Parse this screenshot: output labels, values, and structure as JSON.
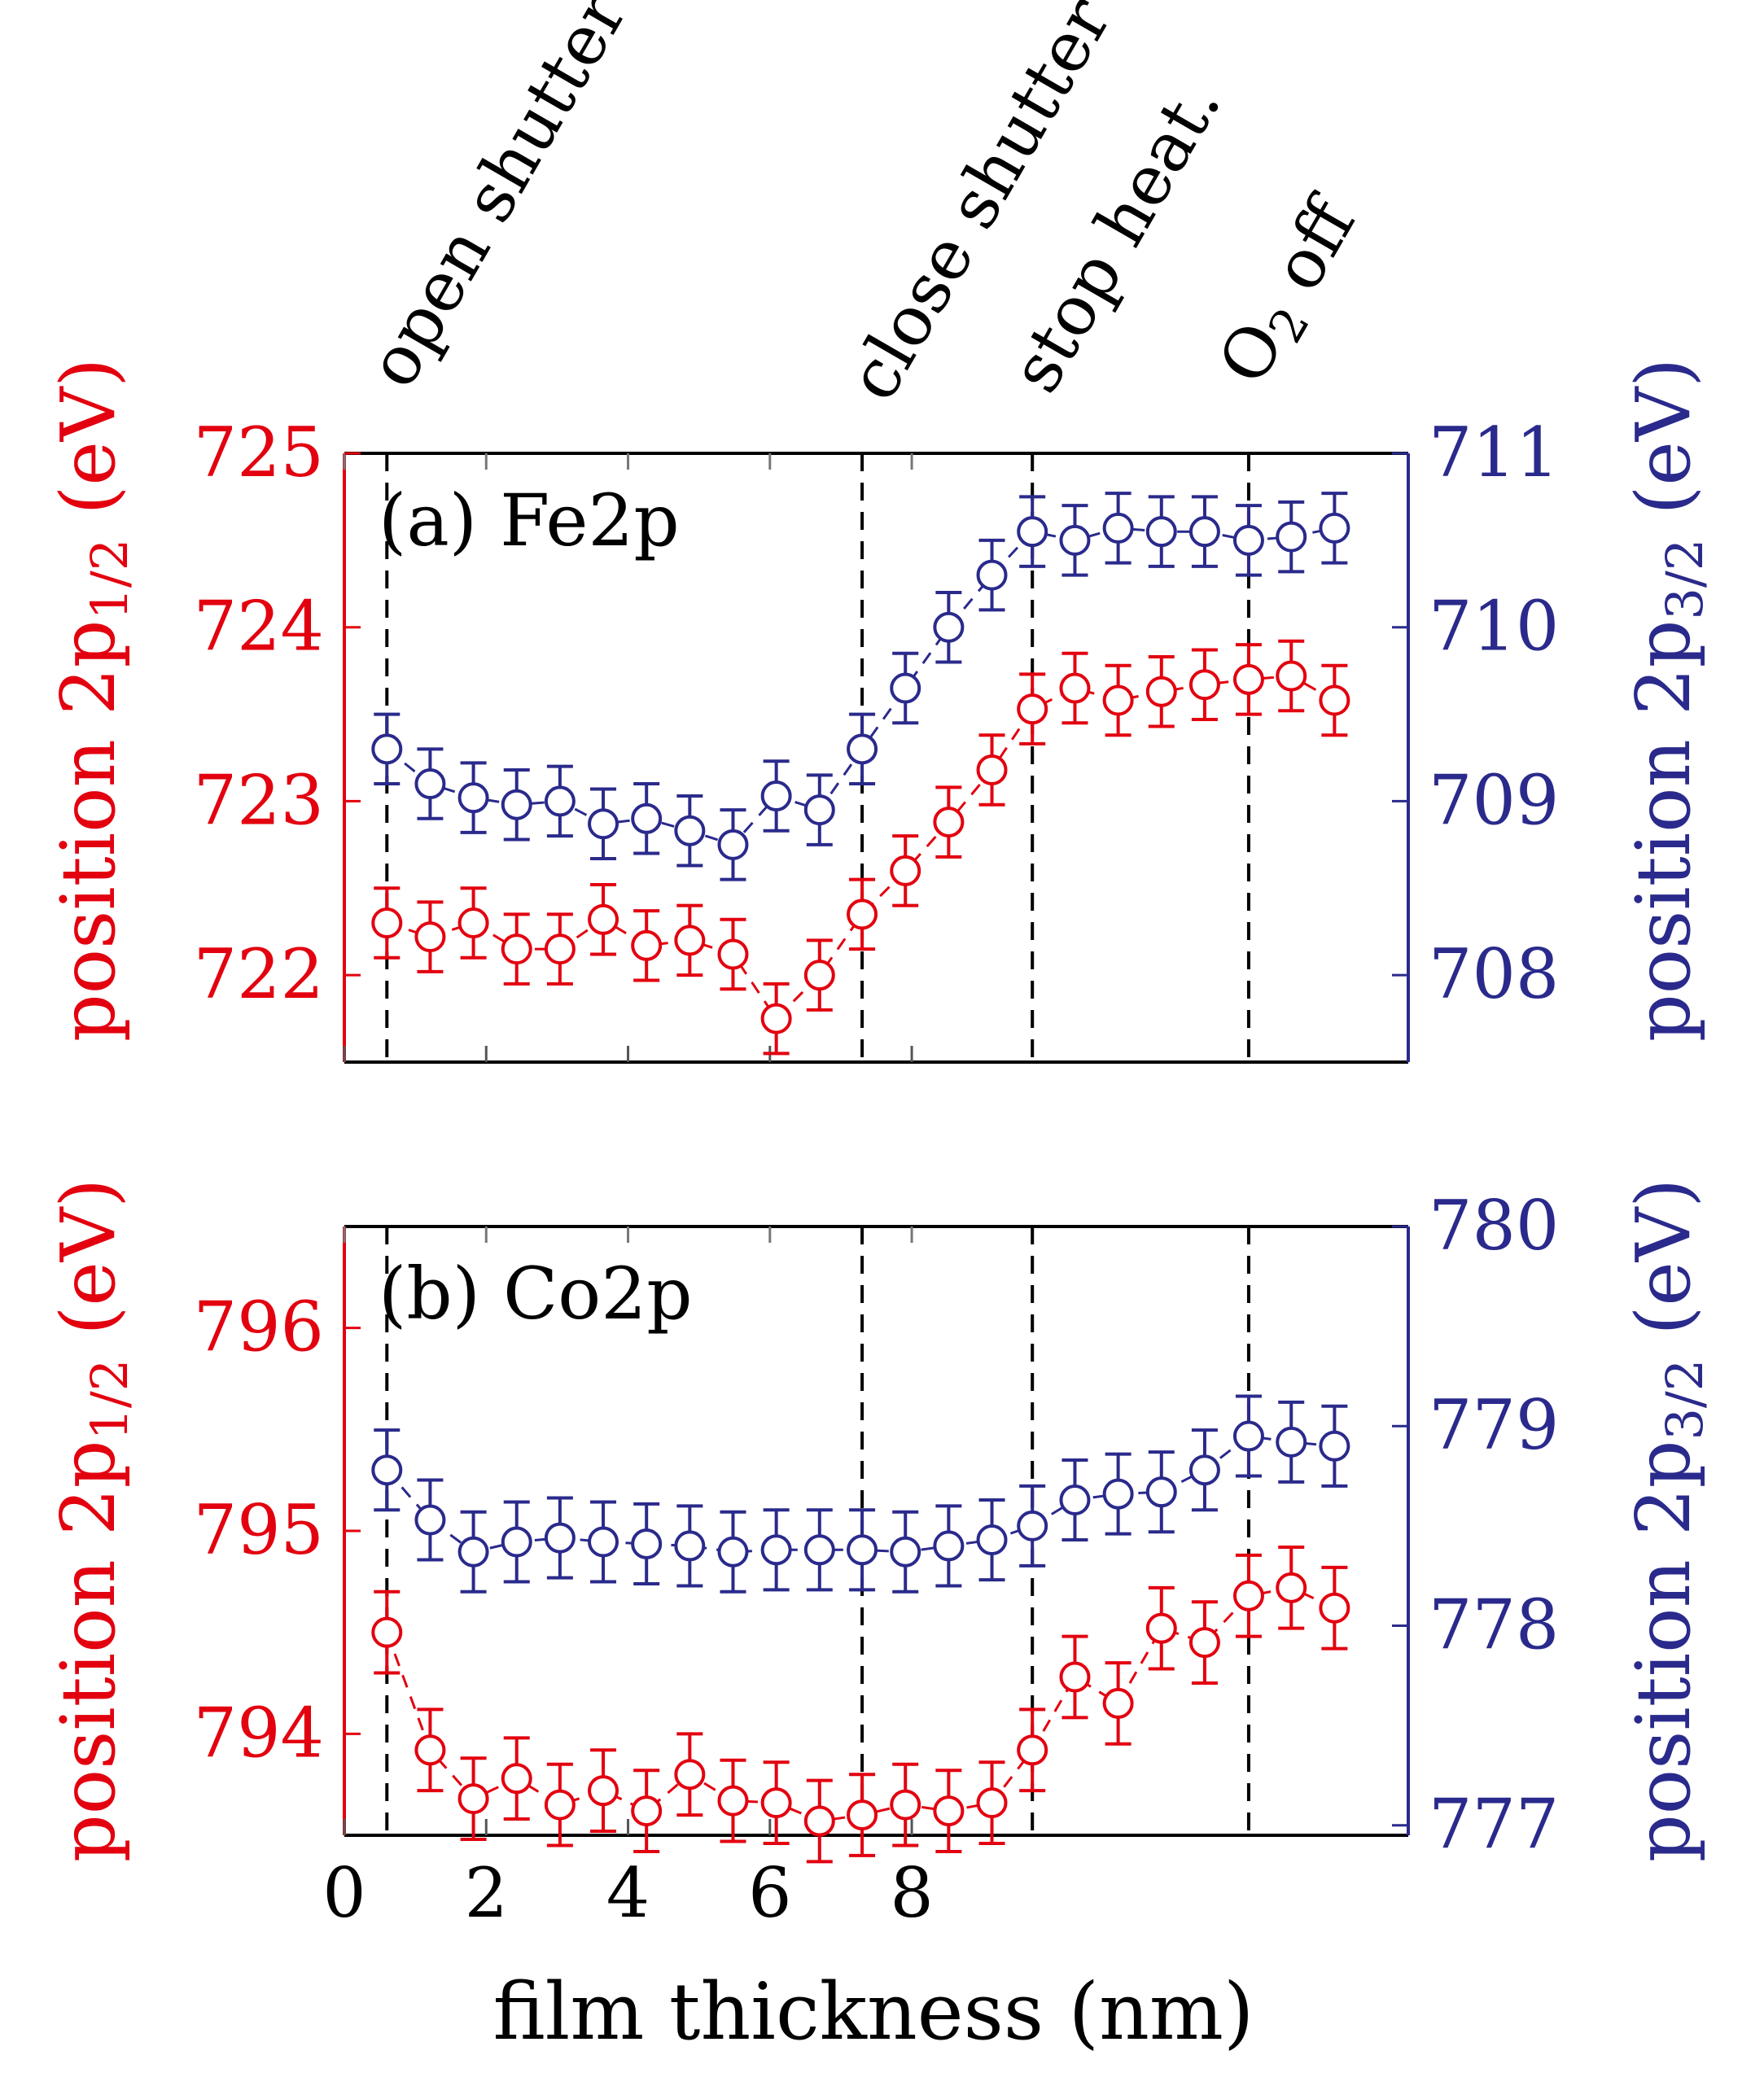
{
  "colors": {
    "red": "#e3000f",
    "blue": "#2a2a8c",
    "axis": "#000000"
  },
  "chart_data": [
    {
      "type": "scatter",
      "panel_label": "(a) Fe2p",
      "x_label": "film thickness (nm)",
      "x_ticks": [
        "0",
        "2",
        "4",
        "6",
        "8"
      ],
      "xlim": [
        0,
        15
      ],
      "vlines": [
        {
          "x": 0.6,
          "label": "open shutter"
        },
        {
          "x": 7.3,
          "label": "close shutter"
        },
        {
          "x": 9.7,
          "label": "stop heat."
        },
        {
          "x": 12.75,
          "label_main": "O",
          "label_sub": "2",
          "label_rest": " off"
        }
      ],
      "left_axis": {
        "label_main": "position 2p",
        "label_sub": "1/2",
        "label_unit": " (eV)",
        "ylim": [
          721.5,
          725.0
        ],
        "ticks": [
          "722",
          "723",
          "724",
          "725"
        ]
      },
      "right_axis": {
        "label_main": "position 2p",
        "label_sub": "3/2",
        "label_unit": " (eV)",
        "ylim": [
          707.5,
          711.0
        ],
        "ticks": [
          "708",
          "709",
          "710",
          "711"
        ]
      },
      "series": [
        {
          "axis": "left",
          "color": "red",
          "x": [
            0.6,
            1.21,
            1.82,
            2.43,
            3.04,
            3.65,
            4.26,
            4.87,
            5.48,
            6.09,
            6.7,
            7.3,
            7.91,
            8.52,
            9.13,
            9.7,
            10.3,
            10.91,
            11.52,
            12.13,
            12.75,
            13.35,
            13.96
          ],
          "y": [
            722.3,
            722.22,
            722.3,
            722.15,
            722.15,
            722.32,
            722.17,
            722.2,
            722.12,
            721.75,
            722.0,
            722.35,
            722.6,
            722.88,
            723.18,
            723.53,
            723.65,
            723.58,
            723.63,
            723.67,
            723.7,
            723.72,
            723.58
          ],
          "err": 0.2
        },
        {
          "axis": "right",
          "color": "blue",
          "x": [
            0.6,
            1.21,
            1.82,
            2.43,
            3.04,
            3.65,
            4.26,
            4.87,
            5.48,
            6.09,
            6.7,
            7.3,
            7.91,
            8.52,
            9.13,
            9.7,
            10.3,
            10.91,
            11.52,
            12.13,
            12.75,
            13.35,
            13.96
          ],
          "y": [
            709.3,
            709.1,
            709.02,
            708.98,
            709.0,
            708.87,
            708.9,
            708.83,
            708.75,
            709.03,
            708.95,
            709.3,
            709.65,
            710.0,
            710.3,
            710.55,
            710.5,
            710.57,
            710.55,
            710.55,
            710.5,
            710.52,
            710.57
          ],
          "err": 0.2
        }
      ]
    },
    {
      "type": "scatter",
      "panel_label": "(b) Co2p",
      "x_label": "film thickness (nm)",
      "x_ticks": [
        "0",
        "2",
        "4",
        "6",
        "8"
      ],
      "xlim": [
        0,
        15
      ],
      "vlines": [
        {
          "x": 0.6,
          "label": ""
        },
        {
          "x": 7.3,
          "label": ""
        },
        {
          "x": 9.7,
          "label": ""
        },
        {
          "x": 12.75,
          "label": ""
        }
      ],
      "left_axis": {
        "label_main": "position 2p",
        "label_sub": "1/2",
        "label_unit": " (eV)",
        "ylim": [
          793.5,
          796.5
        ],
        "ticks": [
          "794",
          "795",
          "796"
        ]
      },
      "right_axis": {
        "label_main": "position 2p",
        "label_sub": "3/2",
        "label_unit": " (eV)",
        "ylim": [
          776.95,
          780.0
        ],
        "ticks": [
          "777",
          "778",
          "779",
          "780"
        ]
      },
      "series": [
        {
          "axis": "left",
          "color": "red",
          "x": [
            0.6,
            1.21,
            1.82,
            2.43,
            3.04,
            3.65,
            4.26,
            4.87,
            5.48,
            6.09,
            6.7,
            7.3,
            7.91,
            8.52,
            9.13,
            9.7,
            10.3,
            10.91,
            11.52,
            12.13,
            12.75,
            13.35,
            13.96
          ],
          "y": [
            794.5,
            793.92,
            793.68,
            793.78,
            793.65,
            793.72,
            793.62,
            793.8,
            793.67,
            793.66,
            793.57,
            793.6,
            793.65,
            793.62,
            793.66,
            793.92,
            794.28,
            794.15,
            794.52,
            794.45,
            794.68,
            794.72,
            794.62
          ],
          "err": 0.2
        },
        {
          "axis": "right",
          "color": "blue",
          "x": [
            0.6,
            1.21,
            1.82,
            2.43,
            3.04,
            3.65,
            4.26,
            4.87,
            5.48,
            6.09,
            6.7,
            7.3,
            7.91,
            8.52,
            9.13,
            9.7,
            10.3,
            10.91,
            11.52,
            12.13,
            12.75,
            13.35,
            13.96
          ],
          "y": [
            778.78,
            778.53,
            778.37,
            778.42,
            778.44,
            778.42,
            778.41,
            778.4,
            778.37,
            778.38,
            778.38,
            778.38,
            778.37,
            778.4,
            778.43,
            778.5,
            778.63,
            778.66,
            778.67,
            778.78,
            778.95,
            778.92,
            778.9
          ],
          "err": 0.2
        }
      ]
    }
  ]
}
